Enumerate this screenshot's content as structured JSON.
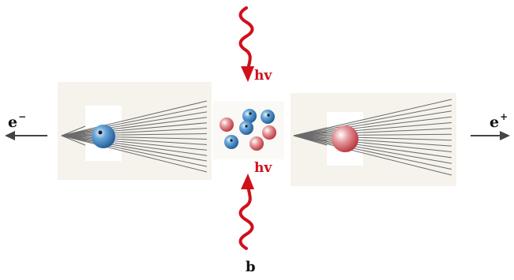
{
  "labels": {
    "electron": "e",
    "electron_sign": "−",
    "positron": "e",
    "positron_sign": "+",
    "photon_top": "hv",
    "photon_bottom": "hv",
    "panel": "b"
  },
  "colors": {
    "photon": "#d0101a",
    "electron": "#2a6db0",
    "positron": "#c8464c",
    "arrow": "#444444"
  }
}
